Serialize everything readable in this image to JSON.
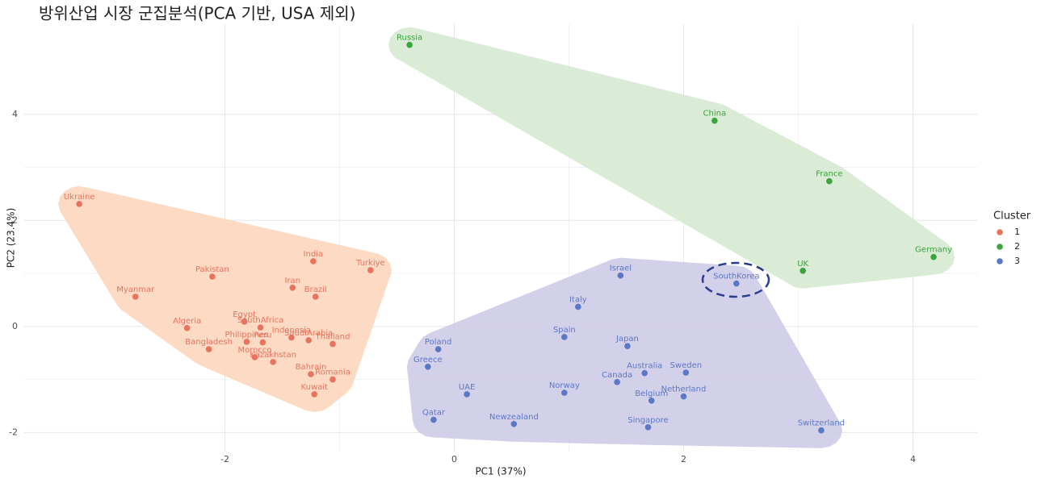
{
  "chart_data": {
    "type": "scatter",
    "title": "방위산업 시장 군집분석(PCA 기반, USA 제외)",
    "x_label": "PC1 (37%)",
    "y_label": "PC2 (23.4%)",
    "legend_title": "Cluster",
    "xlim": [
      -3.75,
      4.56
    ],
    "ylim": [
      -2.36,
      5.7
    ],
    "xticks": [
      -2,
      0,
      2,
      4
    ],
    "yticks": [
      -2,
      0,
      2,
      4
    ],
    "grid": true,
    "series": [
      {
        "name": "1",
        "color": "#e8735f",
        "fill": "#fbd3b8",
        "labels": [
          "Ukraine",
          "Myanmar",
          "Pakistan",
          "India",
          "Turkiye",
          "Iran",
          "Brazil",
          "Algeria",
          "Egypt",
          "SouthAfrica",
          "Philippines",
          "Peru",
          "Indonesia",
          "SaudiArabia",
          "Thailand",
          "Bangladesh",
          "Morocco",
          "Kazakhstan",
          "Bahrain",
          "Romania",
          "Kuwait"
        ],
        "x": [
          -3.27,
          -2.78,
          -2.11,
          -1.23,
          -0.73,
          -1.41,
          -1.21,
          -2.33,
          -1.83,
          -1.69,
          -1.81,
          -1.67,
          -1.42,
          -1.27,
          -1.06,
          -2.14,
          -1.74,
          -1.58,
          -1.25,
          -1.06,
          -1.22
        ],
        "values": [
          2.31,
          0.56,
          0.94,
          1.23,
          1.06,
          0.73,
          0.56,
          -0.03,
          0.09,
          -0.02,
          -0.29,
          -0.3,
          -0.21,
          -0.26,
          -0.33,
          -0.43,
          -0.58,
          -0.67,
          -0.9,
          -1.0,
          -1.28
        ]
      },
      {
        "name": "2",
        "color": "#3aa53a",
        "fill": "#d3e8cf",
        "labels": [
          "Russia",
          "China",
          "France",
          "Germany",
          "UK"
        ],
        "x": [
          -0.39,
          2.27,
          3.27,
          4.18,
          3.04
        ],
        "values": [
          5.31,
          3.88,
          2.74,
          1.31,
          1.05
        ]
      },
      {
        "name": "3",
        "color": "#5b78c6",
        "fill": "#cbc8e6",
        "labels": [
          "Israel",
          "SouthKorea",
          "Italy",
          "Spain",
          "Japan",
          "Poland",
          "Greece",
          "Australia",
          "Sweden",
          "Canada",
          "Norway",
          "UAE",
          "Belgium",
          "Netherland",
          "Qatar",
          "Newzealand",
          "Singapore",
          "Switzerland"
        ],
        "x": [
          1.45,
          2.46,
          1.08,
          0.96,
          1.51,
          -0.14,
          -0.23,
          1.66,
          2.02,
          1.42,
          0.96,
          0.11,
          1.72,
          2.0,
          -0.18,
          0.52,
          1.69,
          3.2
        ],
        "values": [
          0.96,
          0.81,
          0.37,
          -0.2,
          -0.37,
          -0.43,
          -0.76,
          -0.88,
          -0.87,
          -1.05,
          -1.25,
          -1.28,
          -1.4,
          -1.32,
          -1.76,
          -1.84,
          -1.9,
          -1.96
        ]
      }
    ]
  }
}
